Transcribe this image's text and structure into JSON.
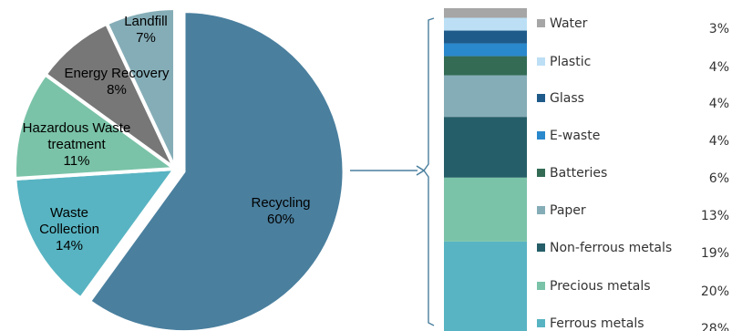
{
  "chart_data": [
    {
      "type": "pie",
      "title": "",
      "slices": [
        {
          "label": "Recycling",
          "value": 60,
          "value_label": "60%",
          "color": "#4a7f9e"
        },
        {
          "label": "Waste Collection",
          "label_lines": [
            "Waste",
            "Collection"
          ],
          "value": 14,
          "value_label": "14%",
          "color": "#58b4c2"
        },
        {
          "label": "Hazardous Waste treatment",
          "label_lines": [
            "Hazardous Waste",
            "treatment"
          ],
          "value": 11,
          "value_label": "11%",
          "color": "#7ac3a8"
        },
        {
          "label": "Energy Recovery",
          "label_lines": [
            "Energy Recovery"
          ],
          "value": 8,
          "value_label": "8%",
          "color": "#777777"
        },
        {
          "label": "Landfill",
          "label_lines": [
            "Landfill"
          ],
          "value": 7,
          "value_label": "7%",
          "color": "#85adb7"
        }
      ],
      "exploded_slice": "Recycling"
    },
    {
      "type": "bar",
      "stacked": true,
      "title": "",
      "breakdown_of": "Recycling",
      "series": [
        {
          "name": "Ferrous metals",
          "value": 28,
          "value_label": "28%",
          "color": "#58b4c2"
        },
        {
          "name": "Precious metals",
          "value": 20,
          "value_label": "20%",
          "color": "#7ac3a8"
        },
        {
          "name": "Non-ferrous metals",
          "value": 19,
          "value_label": "19%",
          "color": "#255e68"
        },
        {
          "name": "Paper",
          "value": 13,
          "value_label": "13%",
          "color": "#85adb7"
        },
        {
          "name": "Batteries",
          "value": 6,
          "value_label": "6%",
          "color": "#336b55"
        },
        {
          "name": "E-waste",
          "value": 4,
          "value_label": "4%",
          "color": "#2a88cc"
        },
        {
          "name": "Glass",
          "value": 4,
          "value_label": "4%",
          "color": "#1e5b8a"
        },
        {
          "name": "Plastic",
          "value": 4,
          "value_label": "4%",
          "color": "#bcdff5"
        },
        {
          "name": "Water",
          "value": 3,
          "value_label": "3%",
          "color": "#a6a6a6"
        }
      ]
    }
  ],
  "connector_color": "#4a7f9e",
  "bracket_color": "#4a7f9e"
}
